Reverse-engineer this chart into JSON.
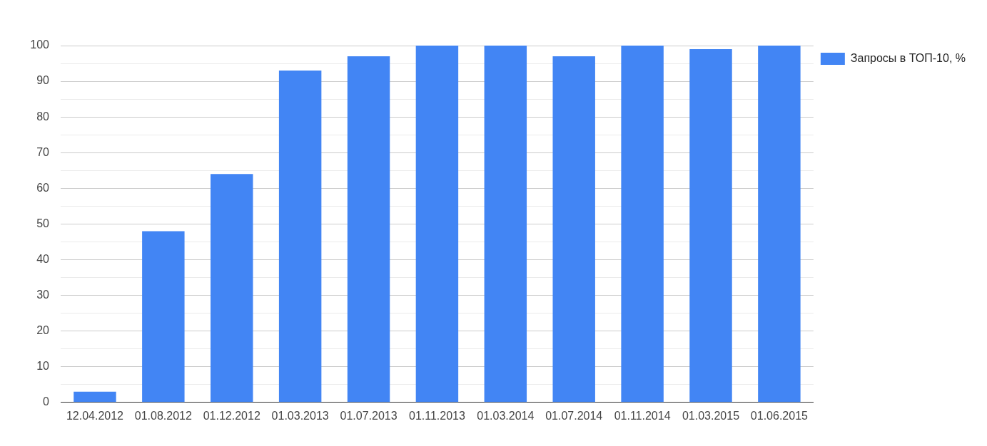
{
  "chart_data": {
    "type": "bar",
    "categories": [
      "12.04.2012",
      "01.08.2012",
      "01.12.2012",
      "01.03.2013",
      "01.07.2013",
      "01.11.2013",
      "01.03.2014",
      "01.07.2014",
      "01.11.2014",
      "01.03.2015",
      "01.06.2015"
    ],
    "series": [
      {
        "name": "Запросы в ТОП-10, %",
        "color": "#4285f4",
        "values": [
          3,
          48,
          64,
          93,
          97,
          100,
          100,
          97,
          100,
          99,
          100
        ]
      }
    ],
    "ylim": [
      0,
      100
    ],
    "yticks": [
      0,
      {
        "value": 5,
        "label": null
      },
      10,
      {
        "value": 15,
        "label": null
      },
      20,
      {
        "value": 25,
        "label": null
      },
      30,
      {
        "value": 35,
        "label": null
      },
      40,
      {
        "value": 45,
        "label": null
      },
      50,
      {
        "value": 55,
        "label": null
      },
      60,
      {
        "value": 65,
        "label": null
      },
      70,
      {
        "value": 75,
        "label": null
      },
      80,
      {
        "value": 85,
        "label": null
      },
      90,
      {
        "value": 95,
        "label": null
      },
      100
    ],
    "grid": "y",
    "legend": "top right"
  }
}
